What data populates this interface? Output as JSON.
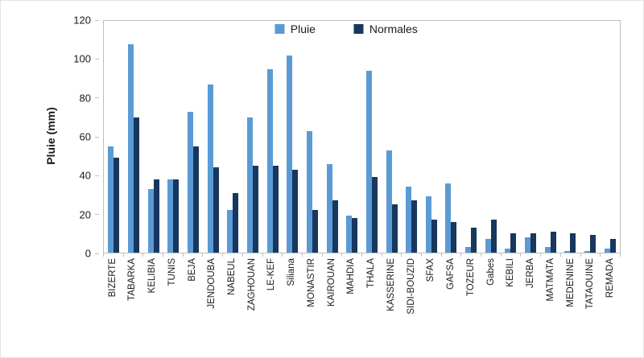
{
  "chart_data": {
    "type": "bar",
    "title": "",
    "xlabel": "",
    "ylabel": "Pluie (mm)",
    "ylim": [
      0,
      120
    ],
    "yticks": [
      0,
      20,
      40,
      60,
      80,
      100,
      120
    ],
    "legend_position": "top-center",
    "grid": false,
    "categories": [
      "BIZERTE",
      "TABARKA",
      "KELIBIA",
      "TUNIS",
      "BEJA",
      "JENDOUBA",
      "NABEUL",
      "ZAGHOUAN",
      "LE-KEF",
      "Siliana",
      "MONASTIR",
      "KAIROUAN",
      "MAHDIA",
      "THALA",
      "KASSERINE",
      "SIDI-BOUZID",
      "SFAX",
      "GAFSA",
      "TOZEUR",
      "Gabes",
      "KEBILI",
      "JERBA",
      "MATMATA",
      "MEDENINE",
      "TATAOUINE",
      "REMADA"
    ],
    "series": [
      {
        "name": "Pluie",
        "color": "#5B9BD5",
        "values": [
          55,
          108,
          33,
          38,
          73,
          87,
          22,
          70,
          95,
          102,
          63,
          46,
          19,
          94,
          53,
          34,
          29,
          36,
          3,
          7,
          2,
          8,
          3,
          1,
          1,
          2
        ]
      },
      {
        "name": "Normales",
        "color": "#17375E",
        "values": [
          49,
          70,
          38,
          38,
          55,
          44,
          31,
          45,
          45,
          43,
          22,
          27,
          18,
          39,
          25,
          27,
          17,
          16,
          13,
          17,
          10,
          10,
          11,
          10,
          9,
          7
        ]
      }
    ]
  }
}
